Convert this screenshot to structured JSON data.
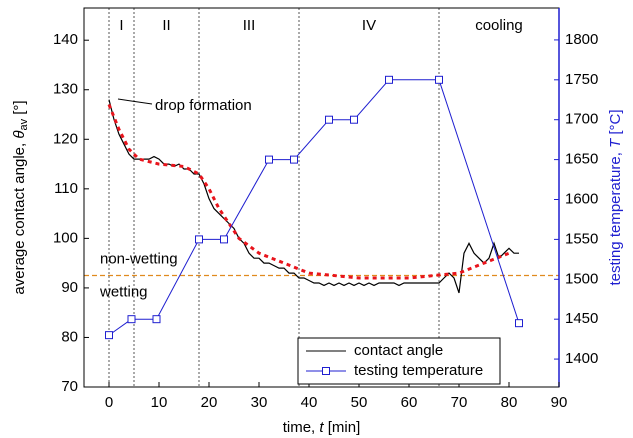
{
  "chart_data": {
    "type": "line",
    "xlabel": {
      "text": "time, ",
      "symbol": "t",
      "unit": " [min]"
    },
    "ylabel": {
      "text": "average contact angle, ",
      "symbol": "θ",
      "sub": "av",
      "unit": " [°]"
    },
    "y2label": {
      "text": "testing temperature, ",
      "symbol": "T",
      "unit": " [°C]"
    },
    "xlim": [
      -5,
      90
    ],
    "xticks": [
      0,
      10,
      20,
      30,
      40,
      50,
      60,
      70,
      80,
      90
    ],
    "ylim": [
      70,
      146.5
    ],
    "yticks": [
      70,
      80,
      90,
      100,
      110,
      120,
      130,
      140
    ],
    "y2lim": [
      1365,
      1840
    ],
    "y2ticks": [
      1400,
      1450,
      1500,
      1550,
      1600,
      1650,
      1700,
      1750,
      1800
    ],
    "phase_lines": [
      0,
      5,
      18,
      38,
      66
    ],
    "phases": [
      "I",
      "II",
      "III",
      "IV",
      "cooling"
    ],
    "wetting_threshold": 92.5,
    "annotations": {
      "drop": "drop formation",
      "above": "non-wetting",
      "below": "wetting"
    },
    "legend": "lower right",
    "series": [
      {
        "name": "contact angle",
        "color": "#000000",
        "x": [
          0,
          1,
          2,
          3,
          4,
          5,
          6,
          7,
          8,
          9,
          10,
          11,
          12,
          13,
          14,
          15,
          16,
          17,
          18,
          19,
          20,
          21,
          22,
          23,
          24,
          25,
          26,
          27,
          28,
          29,
          30,
          31,
          32,
          33,
          34,
          35,
          36,
          37,
          38,
          39,
          40,
          41,
          42,
          43,
          44,
          45,
          46,
          47,
          48,
          49,
          50,
          51,
          52,
          53,
          54,
          55,
          56,
          57,
          58,
          59,
          60,
          61,
          62,
          63,
          64,
          65,
          66,
          67,
          68,
          69,
          70,
          71,
          72,
          73,
          74,
          75,
          76,
          77,
          78,
          79,
          80,
          81,
          82
        ],
        "values": [
          128,
          124,
          121,
          119,
          117,
          116,
          116,
          116,
          116,
          116.5,
          116,
          115,
          115,
          114.5,
          115,
          114,
          114,
          113,
          113,
          111,
          108,
          106,
          105,
          104,
          103,
          102,
          100,
          99,
          97,
          96,
          96,
          95,
          95,
          94.5,
          94,
          94,
          93,
          93,
          92,
          92,
          91.5,
          91,
          91,
          90.5,
          91,
          90.5,
          91,
          90.5,
          91,
          90.5,
          91,
          90.5,
          91,
          90.5,
          91,
          91,
          91,
          91,
          90.5,
          91,
          91,
          91,
          91,
          91,
          91,
          91,
          91,
          92,
          93,
          92,
          89,
          97,
          99,
          97,
          96,
          95,
          96,
          99,
          96,
          97,
          98,
          97,
          97
        ]
      },
      {
        "color": "#e8141c",
        "x": [
          0,
          2,
          4,
          6,
          10,
          15,
          18,
          20,
          22,
          24,
          26,
          30,
          35,
          40,
          50,
          60,
          70,
          75,
          80
        ],
        "values": [
          127,
          122,
          118,
          116,
          115,
          114.5,
          113,
          110,
          106,
          103,
          100,
          97,
          95,
          93,
          92,
          92,
          93,
          95,
          97
        ]
      },
      {
        "name": "testing temperature",
        "color": "#1f1fd0",
        "axis": "y2",
        "x": [
          0,
          4.5,
          9.5,
          18,
          23,
          32,
          37,
          44,
          49,
          56,
          66,
          82
        ],
        "values": [
          1430,
          1450,
          1450,
          1550,
          1550,
          1650,
          1650,
          1700,
          1700,
          1750,
          1750,
          1445
        ]
      }
    ]
  }
}
